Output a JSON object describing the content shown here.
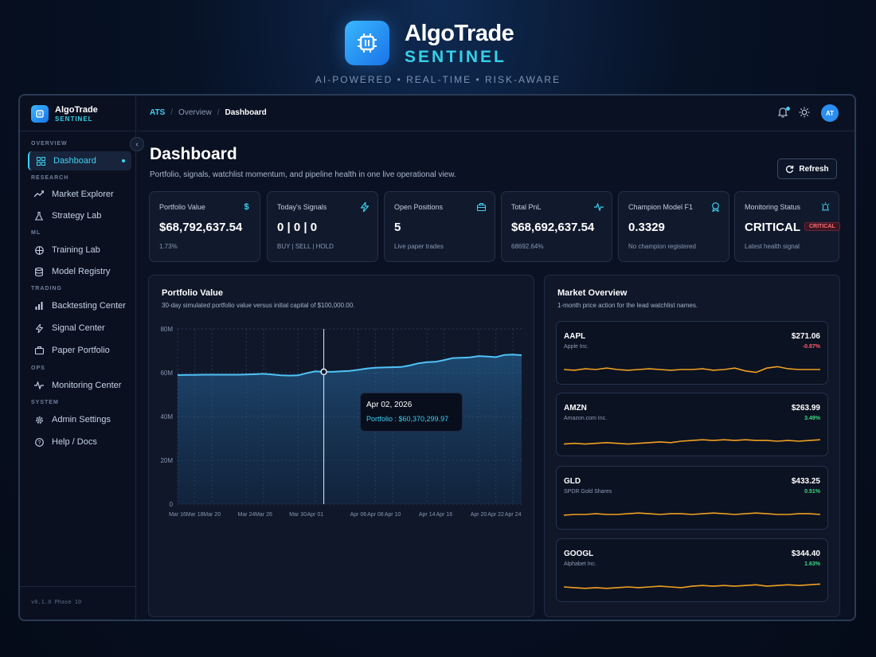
{
  "brand": {
    "title": "AlgoTrade",
    "subtitle": "SENTINEL",
    "tagline": "AI-POWERED • REAL-TIME • RISK-AWARE"
  },
  "sidebar": {
    "title": "AlgoTrade",
    "subtitle": "SENTINEL",
    "version": "v0.1.0 Phase 10",
    "sections": {
      "overview": "OVERVIEW",
      "research": "RESEARCH",
      "ml": "ML",
      "trading": "TRADING",
      "ops": "OPS",
      "system": "SYSTEM"
    },
    "items": {
      "dashboard": "Dashboard",
      "market_explorer": "Market Explorer",
      "strategy_lab": "Strategy Lab",
      "training_lab": "Training Lab",
      "model_registry": "Model Registry",
      "backtesting_center": "Backtesting Center",
      "signal_center": "Signal Center",
      "paper_portfolio": "Paper Portfolio",
      "monitoring_center": "Monitoring Center",
      "admin_settings": "Admin Settings",
      "help_docs": "Help / Docs"
    }
  },
  "topbar": {
    "breadcrumb_root": "ATS",
    "breadcrumb_mid": "Overview",
    "breadcrumb_current": "Dashboard",
    "avatar": "AT"
  },
  "page": {
    "title": "Dashboard",
    "description": "Portfolio, signals, watchlist momentum, and pipeline health in one live operational view.",
    "refresh_label": "Refresh"
  },
  "kpis": [
    {
      "label": "Portfolio Value",
      "value": "$68,792,637.54",
      "sub": "1.73%",
      "icon": "dollar-icon"
    },
    {
      "label": "Today's Signals",
      "value": "0 | 0 | 0",
      "sub": "BUY | SELL | HOLD",
      "icon": "lightning-icon"
    },
    {
      "label": "Open Positions",
      "value": "5",
      "sub": "Live paper trades",
      "icon": "briefcase-icon"
    },
    {
      "label": "Total PnL",
      "value": "$68,692,637.54",
      "sub": "68692.64%",
      "icon": "pulse-icon"
    },
    {
      "label": "Champion Model F1",
      "value": "0.3329",
      "sub": "No champion registered",
      "icon": "award-icon"
    },
    {
      "label": "Monitoring Status",
      "value": "CRITICAL",
      "badge": "CRITICAL",
      "sub": "Latest health signal",
      "icon": "siren-icon"
    }
  ],
  "portfolio_card": {
    "title": "Portfolio Value",
    "description": "30-day simulated portfolio value versus initial capital of $100,000.00.",
    "tooltip_date": "Apr 02, 2026",
    "tooltip_value": "Portfolio : $60,370,299.97"
  },
  "chart_data": {
    "type": "area",
    "x": [
      "Mar 16",
      "Mar 17",
      "Mar 18",
      "Mar 19",
      "Mar 20",
      "Mar 21",
      "Mar 22",
      "Mar 23",
      "Mar 24",
      "Mar 25",
      "Mar 26",
      "Mar 27",
      "Mar 28",
      "Mar 29",
      "Mar 30",
      "Mar 31",
      "Apr 01",
      "Apr 02",
      "Apr 03",
      "Apr 04",
      "Apr 05",
      "Apr 06",
      "Apr 07",
      "Apr 08",
      "Apr 09",
      "Apr 10",
      "Apr 11",
      "Apr 12",
      "Apr 13",
      "Apr 14",
      "Apr 15",
      "Apr 16",
      "Apr 17",
      "Apr 18",
      "Apr 19",
      "Apr 20",
      "Apr 21",
      "Apr 22",
      "Apr 23",
      "Apr 24",
      "Apr 25"
    ],
    "tick_labels": [
      "Mar 16",
      "Mar 18",
      "Mar 20",
      "Mar 24",
      "Mar 26",
      "Mar 30",
      "Apr 01",
      "Apr 06",
      "Apr 08",
      "Apr 10",
      "Apr 14",
      "Apr 16",
      "Apr 20",
      "Apr 22",
      "Apr 24"
    ],
    "series": [
      {
        "values": [
          58.9,
          59.0,
          59.0,
          59.1,
          59.1,
          59.1,
          59.1,
          59.1,
          59.2,
          59.3,
          59.5,
          59.2,
          58.8,
          58.7,
          58.8,
          59.8,
          60.6,
          60.4,
          60.4,
          60.6,
          60.8,
          61.3,
          61.9,
          62.3,
          62.4,
          62.5,
          62.6,
          63.3,
          64.3,
          64.8,
          65.0,
          65.8,
          66.7,
          66.8,
          67.0,
          67.6,
          67.4,
          67.1,
          68.1,
          68.3,
          68.0
        ]
      }
    ],
    "yticks": [
      "0",
      "20M",
      "40M",
      "60M",
      "80M"
    ],
    "ylim": [
      0,
      80
    ],
    "hover_x": "Apr 02",
    "grid": true
  },
  "market": {
    "title": "Market Overview",
    "description": "1-month price action for the lead watchlist names.",
    "items": [
      {
        "symbol": "AAPL",
        "name": "Apple Inc.",
        "price": "$271.06",
        "change": "-0.87%",
        "up": false,
        "spark": [
          0.5,
          0.45,
          0.55,
          0.5,
          0.6,
          0.5,
          0.45,
          0.5,
          0.55,
          0.5,
          0.45,
          0.5,
          0.5,
          0.55,
          0.45,
          0.5,
          0.6,
          0.4,
          0.3,
          0.6,
          0.7,
          0.55,
          0.5,
          0.5,
          0.5
        ]
      },
      {
        "symbol": "AMZN",
        "name": "Amazon.com Inc.",
        "price": "$263.99",
        "change": "3.49%",
        "up": true,
        "spark": [
          0.3,
          0.35,
          0.3,
          0.35,
          0.4,
          0.35,
          0.3,
          0.35,
          0.4,
          0.45,
          0.4,
          0.5,
          0.55,
          0.6,
          0.55,
          0.6,
          0.55,
          0.6,
          0.55,
          0.55,
          0.5,
          0.55,
          0.5,
          0.55,
          0.6
        ]
      },
      {
        "symbol": "GLD",
        "name": "SPDR Gold Shares",
        "price": "$433.25",
        "change": "0.51%",
        "up": true,
        "spark": [
          0.45,
          0.5,
          0.5,
          0.55,
          0.5,
          0.5,
          0.55,
          0.6,
          0.55,
          0.5,
          0.55,
          0.55,
          0.5,
          0.55,
          0.6,
          0.55,
          0.5,
          0.55,
          0.6,
          0.55,
          0.5,
          0.5,
          0.55,
          0.55,
          0.5
        ]
      },
      {
        "symbol": "GOOGL",
        "name": "Alphabet Inc.",
        "price": "$344.40",
        "change": "1.63%",
        "up": true,
        "spark": [
          0.5,
          0.45,
          0.4,
          0.45,
          0.4,
          0.45,
          0.5,
          0.45,
          0.5,
          0.55,
          0.5,
          0.45,
          0.55,
          0.6,
          0.55,
          0.6,
          0.55,
          0.6,
          0.65,
          0.55,
          0.6,
          0.65,
          0.6,
          0.65,
          0.7
        ]
      }
    ]
  },
  "colors": {
    "accent": "#3ed0f0",
    "line": "#4fc3f7",
    "spark": "#f0a020",
    "up": "#3ddc84",
    "down": "#ff5c6c",
    "critical": "#ff6b7a"
  }
}
